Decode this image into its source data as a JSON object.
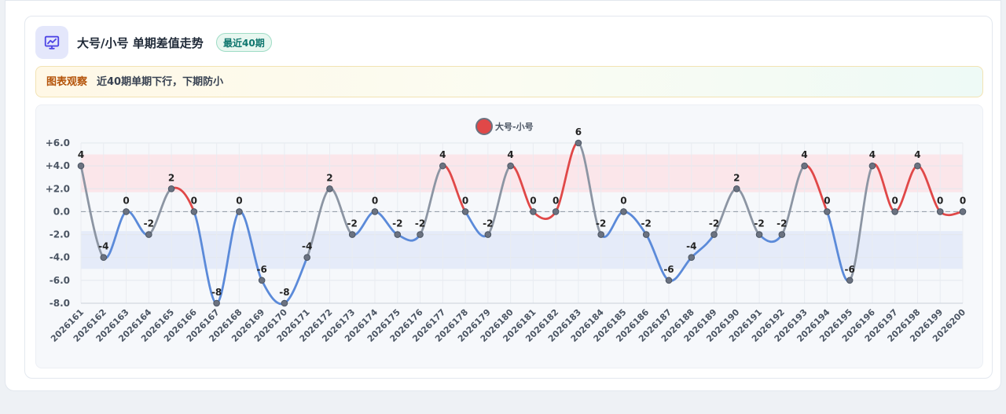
{
  "header": {
    "icon": "trend-chart-icon",
    "title": "大号/小号 单期差值走势",
    "badge": "最近40期"
  },
  "observation": {
    "label": "图表观察",
    "text": "近40期单期下行，下期防小"
  },
  "colors": {
    "up": "#e04848",
    "down": "#5b8ad9",
    "flat": "#8c95a3",
    "band_high": "#fbe3e6",
    "band_low": "#e2e9f8",
    "accent": "#4f46e5"
  },
  "chart_data": {
    "type": "line",
    "legend": "大号-小号",
    "legend_position": "top-center",
    "ylim": [
      -8,
      6
    ],
    "yticks": [
      6,
      4,
      2,
      0,
      -2,
      -4,
      -6,
      -8
    ],
    "ytick_labels": [
      "+6.0",
      "+4.0",
      "+2.0",
      "0.0",
      "-2.0",
      "-4.0",
      "-6.0",
      "-8.0"
    ],
    "bands": [
      {
        "from": 1.7,
        "to": 5.0,
        "color": "high"
      },
      {
        "from": -5.0,
        "to": -1.7,
        "color": "low"
      }
    ],
    "zero_line": true,
    "grid": true,
    "x": [
      "2026161",
      "2026162",
      "2026163",
      "2026164",
      "2026165",
      "2026166",
      "2026167",
      "2026168",
      "2026169",
      "2026170",
      "2026171",
      "2026172",
      "2026173",
      "2026174",
      "2026175",
      "2026176",
      "2026177",
      "2026178",
      "2026179",
      "2026180",
      "2026181",
      "2026182",
      "2026183",
      "2026184",
      "2026185",
      "2026186",
      "2026187",
      "2026188",
      "2026189",
      "2026190",
      "2026191",
      "2026192",
      "2026193",
      "2026194",
      "2026195",
      "2026196",
      "2026197",
      "2026198",
      "2026199",
      "2026200"
    ],
    "series": [
      {
        "name": "大号-小号",
        "values": [
          4,
          -4,
          0,
          -2,
          2,
          0,
          -8,
          0,
          -6,
          -8,
          -4,
          2,
          -2,
          0,
          -2,
          -2,
          4,
          0,
          -2,
          4,
          0,
          0,
          6,
          -2,
          0,
          -2,
          -6,
          -4,
          -2,
          2,
          -2,
          -2,
          4,
          0,
          -6,
          4,
          0,
          4,
          0,
          0
        ]
      }
    ]
  }
}
